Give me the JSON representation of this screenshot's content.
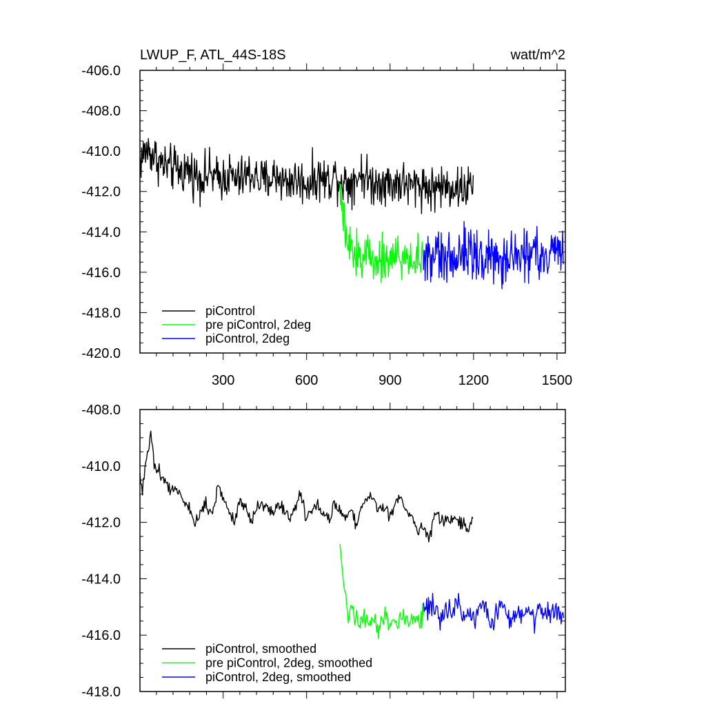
{
  "chart_data": [
    {
      "type": "line",
      "title_left": "LWUP_F, ATL_44S-18S",
      "title_right": "watt/m^2",
      "xlim": [
        1,
        1530
      ],
      "ylim": [
        -420,
        -406
      ],
      "yticks": [
        "-406.0",
        "-408.0",
        "-410.0",
        "-412.0",
        "-414.0",
        "-416.0",
        "-418.0",
        "-420.0"
      ],
      "ytick_values": [
        -406,
        -408,
        -410,
        -412,
        -414,
        -416,
        -418,
        -420
      ],
      "xticks": [
        "300",
        "600",
        "900",
        "1200",
        "1500"
      ],
      "xtick_values": [
        300,
        600,
        900,
        1200,
        1500
      ],
      "legend_location": "bottom-left",
      "series": [
        {
          "name": "piControl",
          "color": "#000000",
          "x": [
            1,
            25,
            50,
            75,
            100,
            125,
            150,
            175,
            200,
            225,
            250,
            275,
            300,
            325,
            350,
            375,
            400,
            425,
            450,
            475,
            500,
            525,
            550,
            575,
            600,
            625,
            650,
            675,
            700,
            725,
            750,
            775,
            800,
            825,
            850,
            875,
            900,
            925,
            950,
            975,
            1000,
            1025,
            1050,
            1075,
            1100,
            1125,
            1150,
            1175,
            1200
          ],
          "y": [
            -410.5,
            -409.9,
            -410.2,
            -410.6,
            -410.8,
            -410.9,
            -411.0,
            -410.9,
            -411.2,
            -411.3,
            -411.1,
            -411.4,
            -411.3,
            -411.2,
            -411.5,
            -411.3,
            -411.1,
            -411.4,
            -411.5,
            -411.3,
            -411.2,
            -411.6,
            -411.4,
            -411.5,
            -411.6,
            -411.4,
            -411.3,
            -411.5,
            -411.2,
            -411.4,
            -411.6,
            -411.3,
            -411.1,
            -411.5,
            -411.6,
            -411.4,
            -411.7,
            -411.5,
            -411.6,
            -411.8,
            -411.6,
            -411.7,
            -411.9,
            -411.7,
            -411.8,
            -411.7,
            -411.9,
            -411.8,
            -411.7
          ],
          "noise": 1.1
        },
        {
          "name": "pre piControl, 2deg",
          "color": "#00ff00",
          "x": [
            720,
            730,
            740,
            750,
            760,
            780,
            800,
            820,
            840,
            860,
            880,
            900,
            920,
            940,
            960,
            980,
            1000,
            1020
          ],
          "y": [
            -412.0,
            -413.2,
            -414.2,
            -414.8,
            -415.0,
            -415.1,
            -415.2,
            -415.1,
            -415.3,
            -415.2,
            -415.4,
            -415.3,
            -415.2,
            -415.4,
            -415.3,
            -415.4,
            -415.3,
            -415.4
          ],
          "noise": 1.1
        },
        {
          "name": "piControl, 2deg",
          "color": "#0000ff",
          "x": [
            1020,
            1050,
            1080,
            1110,
            1140,
            1170,
            1200,
            1230,
            1260,
            1290,
            1320,
            1350,
            1380,
            1410,
            1440,
            1470,
            1500,
            1525
          ],
          "y": [
            -415.3,
            -415.2,
            -415.4,
            -415.1,
            -415.3,
            -415.0,
            -415.2,
            -415.3,
            -415.1,
            -415.4,
            -415.2,
            -415.0,
            -415.3,
            -415.1,
            -415.4,
            -415.2,
            -415.1,
            -415.3
          ],
          "noise": 1.3
        }
      ]
    },
    {
      "type": "line",
      "xlim": [
        1,
        1530
      ],
      "ylim": [
        -418,
        -408
      ],
      "yticks": [
        "-408.0",
        "-410.0",
        "-412.0",
        "-414.0",
        "-416.0",
        "-418.0"
      ],
      "ytick_values": [
        -408,
        -410,
        -412,
        -414,
        -416,
        -418
      ],
      "xtick_values": [
        300,
        600,
        900,
        1200,
        1500
      ],
      "legend_location": "bottom-left",
      "series": [
        {
          "name": "piControl, smoothed",
          "color": "#000000",
          "x": [
            1,
            10,
            20,
            30,
            40,
            50,
            60,
            80,
            100,
            120,
            140,
            160,
            180,
            200,
            220,
            240,
            260,
            280,
            300,
            320,
            340,
            360,
            380,
            400,
            420,
            440,
            460,
            480,
            500,
            520,
            540,
            560,
            580,
            600,
            620,
            640,
            660,
            680,
            700,
            720,
            740,
            760,
            780,
            800,
            820,
            840,
            860,
            880,
            900,
            920,
            940,
            960,
            980,
            1000,
            1020,
            1040,
            1060,
            1080,
            1100,
            1120,
            1140,
            1160,
            1180,
            1200
          ],
          "y": [
            -410.2,
            -410.8,
            -410.0,
            -409.6,
            -408.7,
            -409.8,
            -410.1,
            -410.4,
            -410.7,
            -410.9,
            -410.8,
            -411.3,
            -411.6,
            -412.2,
            -411.5,
            -411.3,
            -411.7,
            -410.8,
            -411.1,
            -411.6,
            -412.0,
            -411.2,
            -411.4,
            -411.9,
            -411.6,
            -411.3,
            -411.5,
            -411.7,
            -411.2,
            -411.6,
            -411.9,
            -411.3,
            -411.1,
            -411.8,
            -411.6,
            -411.4,
            -411.7,
            -411.9,
            -411.3,
            -411.6,
            -411.8,
            -411.5,
            -412.1,
            -411.4,
            -411.0,
            -411.3,
            -411.6,
            -411.5,
            -411.8,
            -411.3,
            -411.2,
            -411.6,
            -411.8,
            -412.4,
            -412.0,
            -412.6,
            -411.7,
            -411.9,
            -412.0,
            -411.8,
            -411.9,
            -412.1,
            -412.3,
            -411.7
          ],
          "noise": 0.25
        },
        {
          "name": "pre piControl, 2deg, smoothed",
          "color": "#00ff00",
          "x": [
            720,
            725,
            730,
            735,
            740,
            745,
            750,
            760,
            770,
            780,
            790,
            800,
            820,
            840,
            860,
            880,
            900,
            920,
            940,
            960,
            980,
            1000,
            1020
          ],
          "y": [
            -413.1,
            -413.5,
            -414.0,
            -414.4,
            -414.6,
            -415.0,
            -415.6,
            -415.2,
            -415.4,
            -415.1,
            -415.7,
            -415.3,
            -415.6,
            -415.4,
            -415.8,
            -415.2,
            -415.5,
            -415.6,
            -415.4,
            -415.3,
            -415.5,
            -415.4,
            -415.3
          ],
          "noise": 0.35
        },
        {
          "name": "piControl, 2deg, smoothed",
          "color": "#0000ff",
          "x": [
            1020,
            1040,
            1060,
            1080,
            1100,
            1120,
            1140,
            1160,
            1180,
            1200,
            1220,
            1240,
            1260,
            1280,
            1300,
            1320,
            1340,
            1360,
            1380,
            1400,
            1420,
            1440,
            1460,
            1480,
            1500,
            1520,
            1525
          ],
          "y": [
            -414.9,
            -415.1,
            -414.8,
            -415.6,
            -415.0,
            -415.3,
            -414.7,
            -415.4,
            -415.1,
            -415.5,
            -415.0,
            -414.9,
            -415.6,
            -415.2,
            -414.8,
            -415.3,
            -415.5,
            -415.0,
            -415.4,
            -415.1,
            -415.6,
            -414.9,
            -415.3,
            -415.0,
            -415.2,
            -415.4,
            -415.5
          ],
          "noise": 0.4
        }
      ]
    }
  ]
}
